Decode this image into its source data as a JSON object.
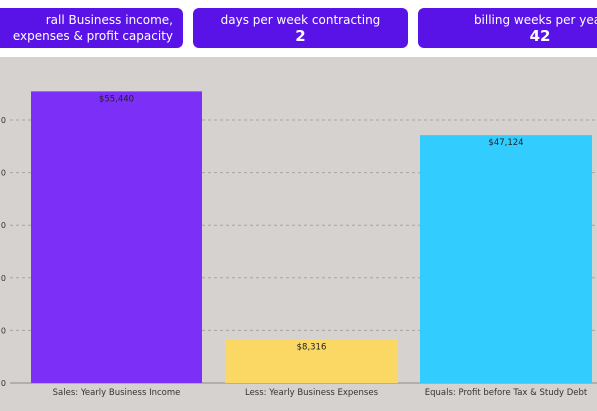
{
  "cards": [
    {
      "title": "rall Business income, expenses & profit capacity",
      "value": ""
    },
    {
      "title": "days per week contracting",
      "value": "2"
    },
    {
      "title": "billing weeks per year",
      "value": "42"
    }
  ],
  "colors": {
    "card_bg": "#5a13e6",
    "panel_bg": "#d6d2d0"
  },
  "chart_data": {
    "type": "bar",
    "categories": [
      "Sales: Yearly Business Income",
      "Less: Yearly Business Expenses",
      "Equals: Profit before Tax & Study Debt"
    ],
    "values": [
      55440,
      8316,
      47124
    ],
    "value_labels": [
      "$55,440",
      "$8,316",
      "$47,124"
    ],
    "bar_colors": [
      "#7b2ff7",
      "#fbd864",
      "#33ccff"
    ],
    "y_tick_labels": [
      "0",
      "0",
      "0",
      "0",
      "0",
      "0"
    ],
    "y_tick_values": [
      0,
      10000,
      20000,
      30000,
      40000,
      50000
    ],
    "ylim": [
      0,
      55440
    ],
    "grid": true
  }
}
